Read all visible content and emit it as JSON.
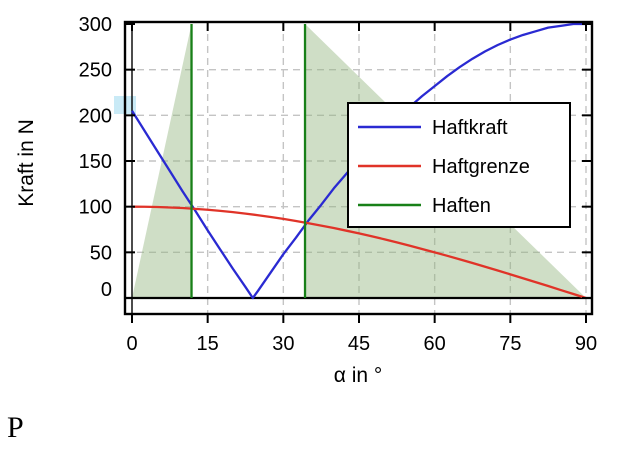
{
  "stray_text": "P",
  "legend": {
    "items": [
      {
        "label": "Haftkraft",
        "color": "#2a2ad2"
      },
      {
        "label": "Haftgrenze",
        "color": "#e03328"
      },
      {
        "label": "Haften",
        "color": "#188018"
      }
    ]
  },
  "colors": {
    "gridline": "#c4c4c4",
    "region_fill": "#94b680",
    "region_opacity": 0.45,
    "frame": "#000000"
  },
  "chart_data": {
    "type": "line",
    "title": "",
    "xlabel": "α in °",
    "ylabel": "Kraft in N",
    "xlim": [
      -1.4,
      91.2
    ],
    "ylim": [
      -17.5,
      302
    ],
    "x_ticks": [
      0,
      15,
      30,
      45,
      60,
      75,
      90
    ],
    "y_ticks": [
      0,
      50,
      100,
      150,
      200,
      250,
      300
    ],
    "grid": "dashed",
    "legend_position": "upper right inside",
    "series": [
      {
        "name": "Haftkraft",
        "color": "#2a2ad2",
        "style": "line",
        "x": [
          0,
          2.5,
          5,
          7.5,
          10,
          12.5,
          15,
          17.5,
          20,
          22.5,
          23.95,
          25,
          27.5,
          30,
          32.5,
          35,
          37.5,
          40,
          42.5,
          45,
          47.5,
          50,
          52.5,
          55,
          57.5,
          60,
          62.5,
          65,
          67.5,
          70,
          72.5,
          75,
          77.5,
          80,
          82.5,
          85,
          87.5,
          90
        ],
        "y": [
          205,
          183,
          161,
          139,
          117,
          96,
          74,
          53,
          32,
          12,
          0,
          8,
          28,
          48,
          66,
          85,
          102,
          120,
          136,
          152,
          167,
          182,
          196,
          209,
          221,
          232,
          243,
          253,
          262,
          270,
          277,
          283,
          288,
          292,
          296,
          298,
          300,
          300
        ]
      },
      {
        "name": "Haftgrenze",
        "color": "#e03328",
        "style": "line",
        "x": [
          0,
          2.5,
          5,
          7.5,
          10,
          12.5,
          15,
          17.5,
          20,
          22.5,
          25,
          27.5,
          30,
          32.5,
          35,
          37.5,
          40,
          42.5,
          45,
          47.5,
          50,
          52.5,
          55,
          57.5,
          60,
          62.5,
          65,
          67.5,
          70,
          72.5,
          75,
          77.5,
          80,
          82.5,
          85,
          87.5,
          90
        ],
        "y": [
          100,
          99.9,
          99.6,
          99.1,
          98.5,
          97.6,
          96.6,
          95.4,
          94.0,
          92.4,
          90.6,
          88.7,
          86.6,
          84.3,
          81.9,
          79.3,
          76.6,
          73.7,
          70.7,
          67.6,
          64.3,
          60.9,
          57.4,
          53.7,
          50.0,
          46.2,
          42.3,
          38.3,
          34.2,
          30.1,
          25.9,
          21.6,
          17.4,
          13.1,
          8.7,
          4.4,
          0
        ]
      },
      {
        "name": "Haften",
        "color": "#188018",
        "style": "vline",
        "x": [
          11.8,
          34.3
        ]
      }
    ],
    "regions": [
      {
        "points": [
          [
            0,
            0
          ],
          [
            11.8,
            300
          ],
          [
            11.8,
            0
          ]
        ]
      },
      {
        "points": [
          [
            34.3,
            0
          ],
          [
            34.3,
            300
          ],
          [
            90,
            0
          ]
        ]
      }
    ]
  }
}
